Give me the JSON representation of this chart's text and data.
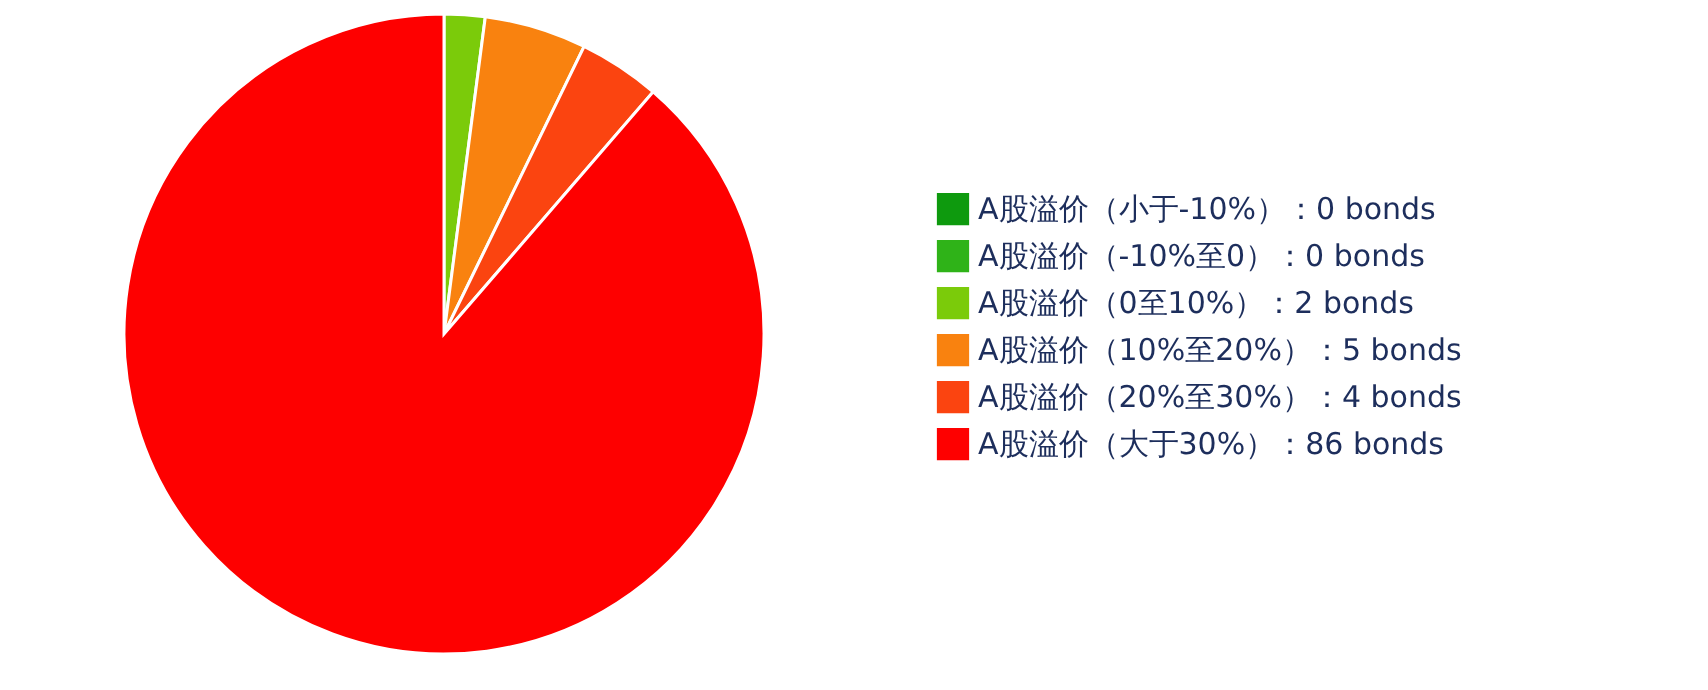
{
  "chart_data": {
    "type": "pie",
    "categories": [
      "A股溢价（小于-10%）：0 bonds",
      "A股溢价（-10%至0）：0 bonds",
      "A股溢价（0至10%）：2 bonds",
      "A股溢价（10%至20%）：5 bonds",
      "A股溢价（20%至30%）：4 bonds",
      "A股溢价（大于30%）：86 bonds"
    ],
    "values": [
      0,
      0,
      2,
      5,
      4,
      86
    ],
    "colors": [
      "#0e9a0e",
      "#2fb318",
      "#7bcb0a",
      "#f9820f",
      "#fb4410",
      "#fe0000"
    ],
    "legend": "right"
  }
}
